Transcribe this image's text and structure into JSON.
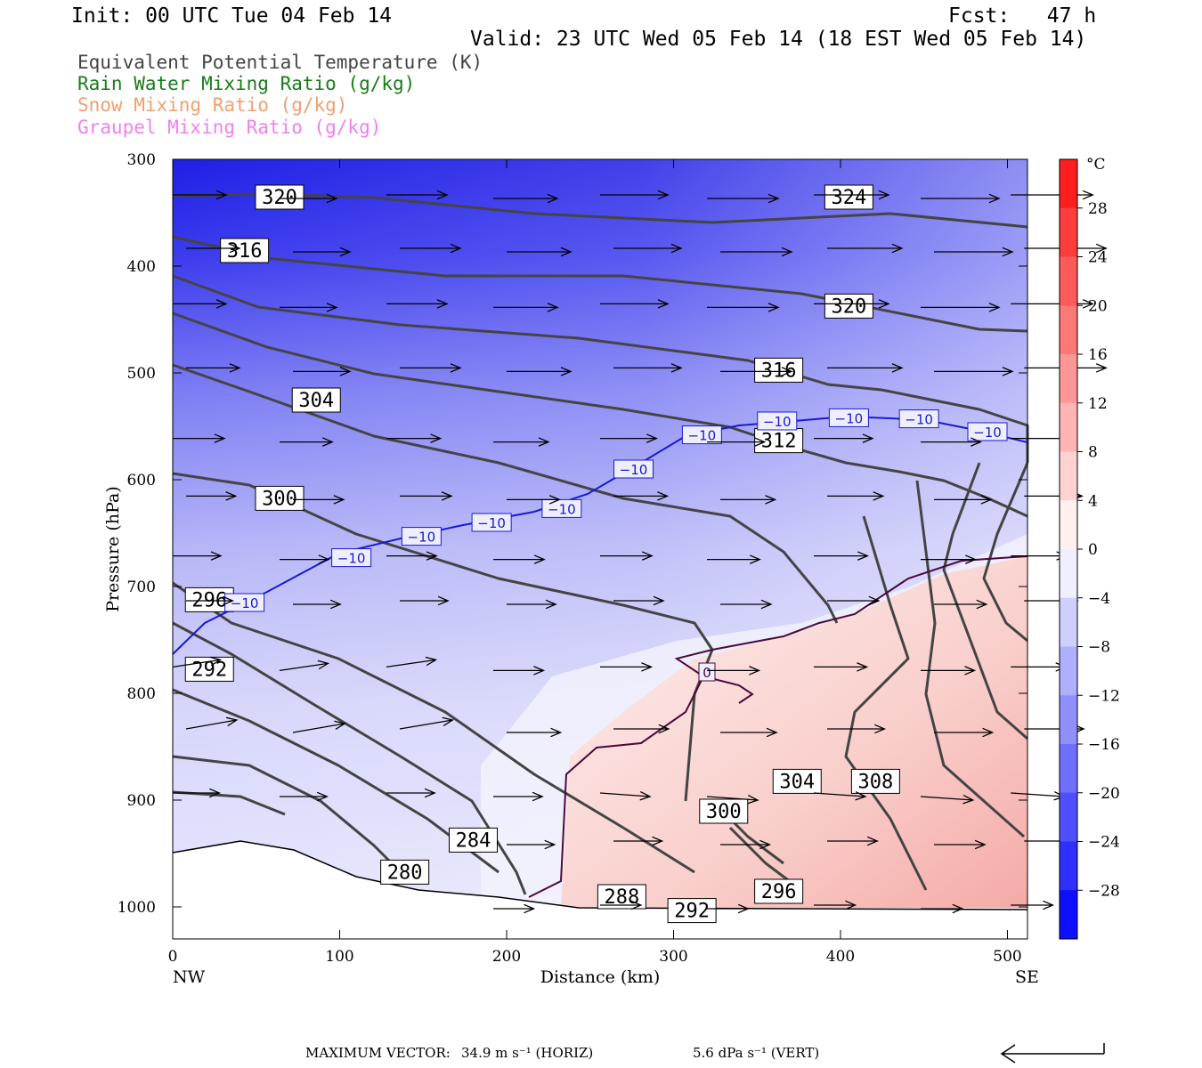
{
  "header": {
    "init": "Init: 00 UTC Tue 04 Feb 14",
    "fcst": "Fcst:   47 h",
    "valid": "Valid: 23 UTC Wed 05 Feb 14 (18 EST Wed 05 Feb 14)"
  },
  "legend": [
    {
      "text": "Equivalent Potential Temperature (K)",
      "color": "#444444"
    },
    {
      "text": "Rain Water Mixing Ratio (g/kg)",
      "color": "#1a7a1a"
    },
    {
      "text": "Snow Mixing Ratio (g/kg)",
      "color": "#f0a070"
    },
    {
      "text": "Graupel Mixing Ratio (g/kg)",
      "color": "#f080f0"
    }
  ],
  "footer": {
    "max_vector_label": "MAXIMUM VECTOR:",
    "horiz": "34.9 m s⁻¹ (HORIZ)",
    "vert": "5.6 dPa s⁻¹ (VERT)"
  },
  "chart_data": {
    "type": "cross-section",
    "xlabel": "Distance (km)",
    "ylabel": "Pressure (hPa)",
    "xlim": [
      0,
      512
    ],
    "ylim": [
      1030,
      300
    ],
    "x_ticks": [
      0,
      100,
      200,
      300,
      400,
      500
    ],
    "y_ticks": [
      300,
      400,
      500,
      600,
      700,
      800,
      900,
      1000
    ],
    "x_end_labels": {
      "left": "NW",
      "right": "SE"
    },
    "colorbar": {
      "unit": "°C",
      "ticks": [
        28,
        24,
        20,
        16,
        12,
        8,
        4,
        0,
        -4,
        -8,
        -12,
        -16,
        -20,
        -24,
        -28
      ],
      "min": -32,
      "max": 32
    },
    "theta_e_labels": [
      {
        "v": "320",
        "x": 64,
        "p": 335
      },
      {
        "v": "316",
        "x": 43,
        "p": 385
      },
      {
        "v": "304",
        "x": 86,
        "p": 525
      },
      {
        "v": "300",
        "x": 64,
        "p": 617
      },
      {
        "v": "296",
        "x": 22,
        "p": 712
      },
      {
        "v": "292",
        "x": 22,
        "p": 777
      },
      {
        "v": "284",
        "x": 180,
        "p": 937
      },
      {
        "v": "280",
        "x": 139,
        "p": 967
      },
      {
        "v": "288",
        "x": 269,
        "p": 990
      },
      {
        "v": "292",
        "x": 311,
        "p": 1003
      },
      {
        "v": "296",
        "x": 363,
        "p": 985
      },
      {
        "v": "300",
        "x": 330,
        "p": 910
      },
      {
        "v": "304",
        "x": 374,
        "p": 882
      },
      {
        "v": "308",
        "x": 421,
        "p": 882
      },
      {
        "v": "312",
        "x": 363,
        "p": 563
      },
      {
        "v": "316",
        "x": 363,
        "p": 497
      },
      {
        "v": "320",
        "x": 405,
        "p": 437
      },
      {
        "v": "324",
        "x": 405,
        "p": 335
      }
    ],
    "temp_labels": [
      {
        "v": "−10",
        "x": 43,
        "p": 715
      },
      {
        "v": "−10",
        "x": 107,
        "p": 673
      },
      {
        "v": "−10",
        "x": 149,
        "p": 653
      },
      {
        "v": "−10",
        "x": 191,
        "p": 640
      },
      {
        "v": "−10",
        "x": 233,
        "p": 627
      },
      {
        "v": "−10",
        "x": 276,
        "p": 590
      },
      {
        "v": "−10",
        "x": 317,
        "p": 558
      },
      {
        "v": "−10",
        "x": 362,
        "p": 545
      },
      {
        "v": "−10",
        "x": 405,
        "p": 542
      },
      {
        "v": "−10",
        "x": 447,
        "p": 543
      },
      {
        "v": "−10",
        "x": 488,
        "p": 555
      },
      {
        "v": "0",
        "x": 320,
        "p": 780
      }
    ]
  }
}
